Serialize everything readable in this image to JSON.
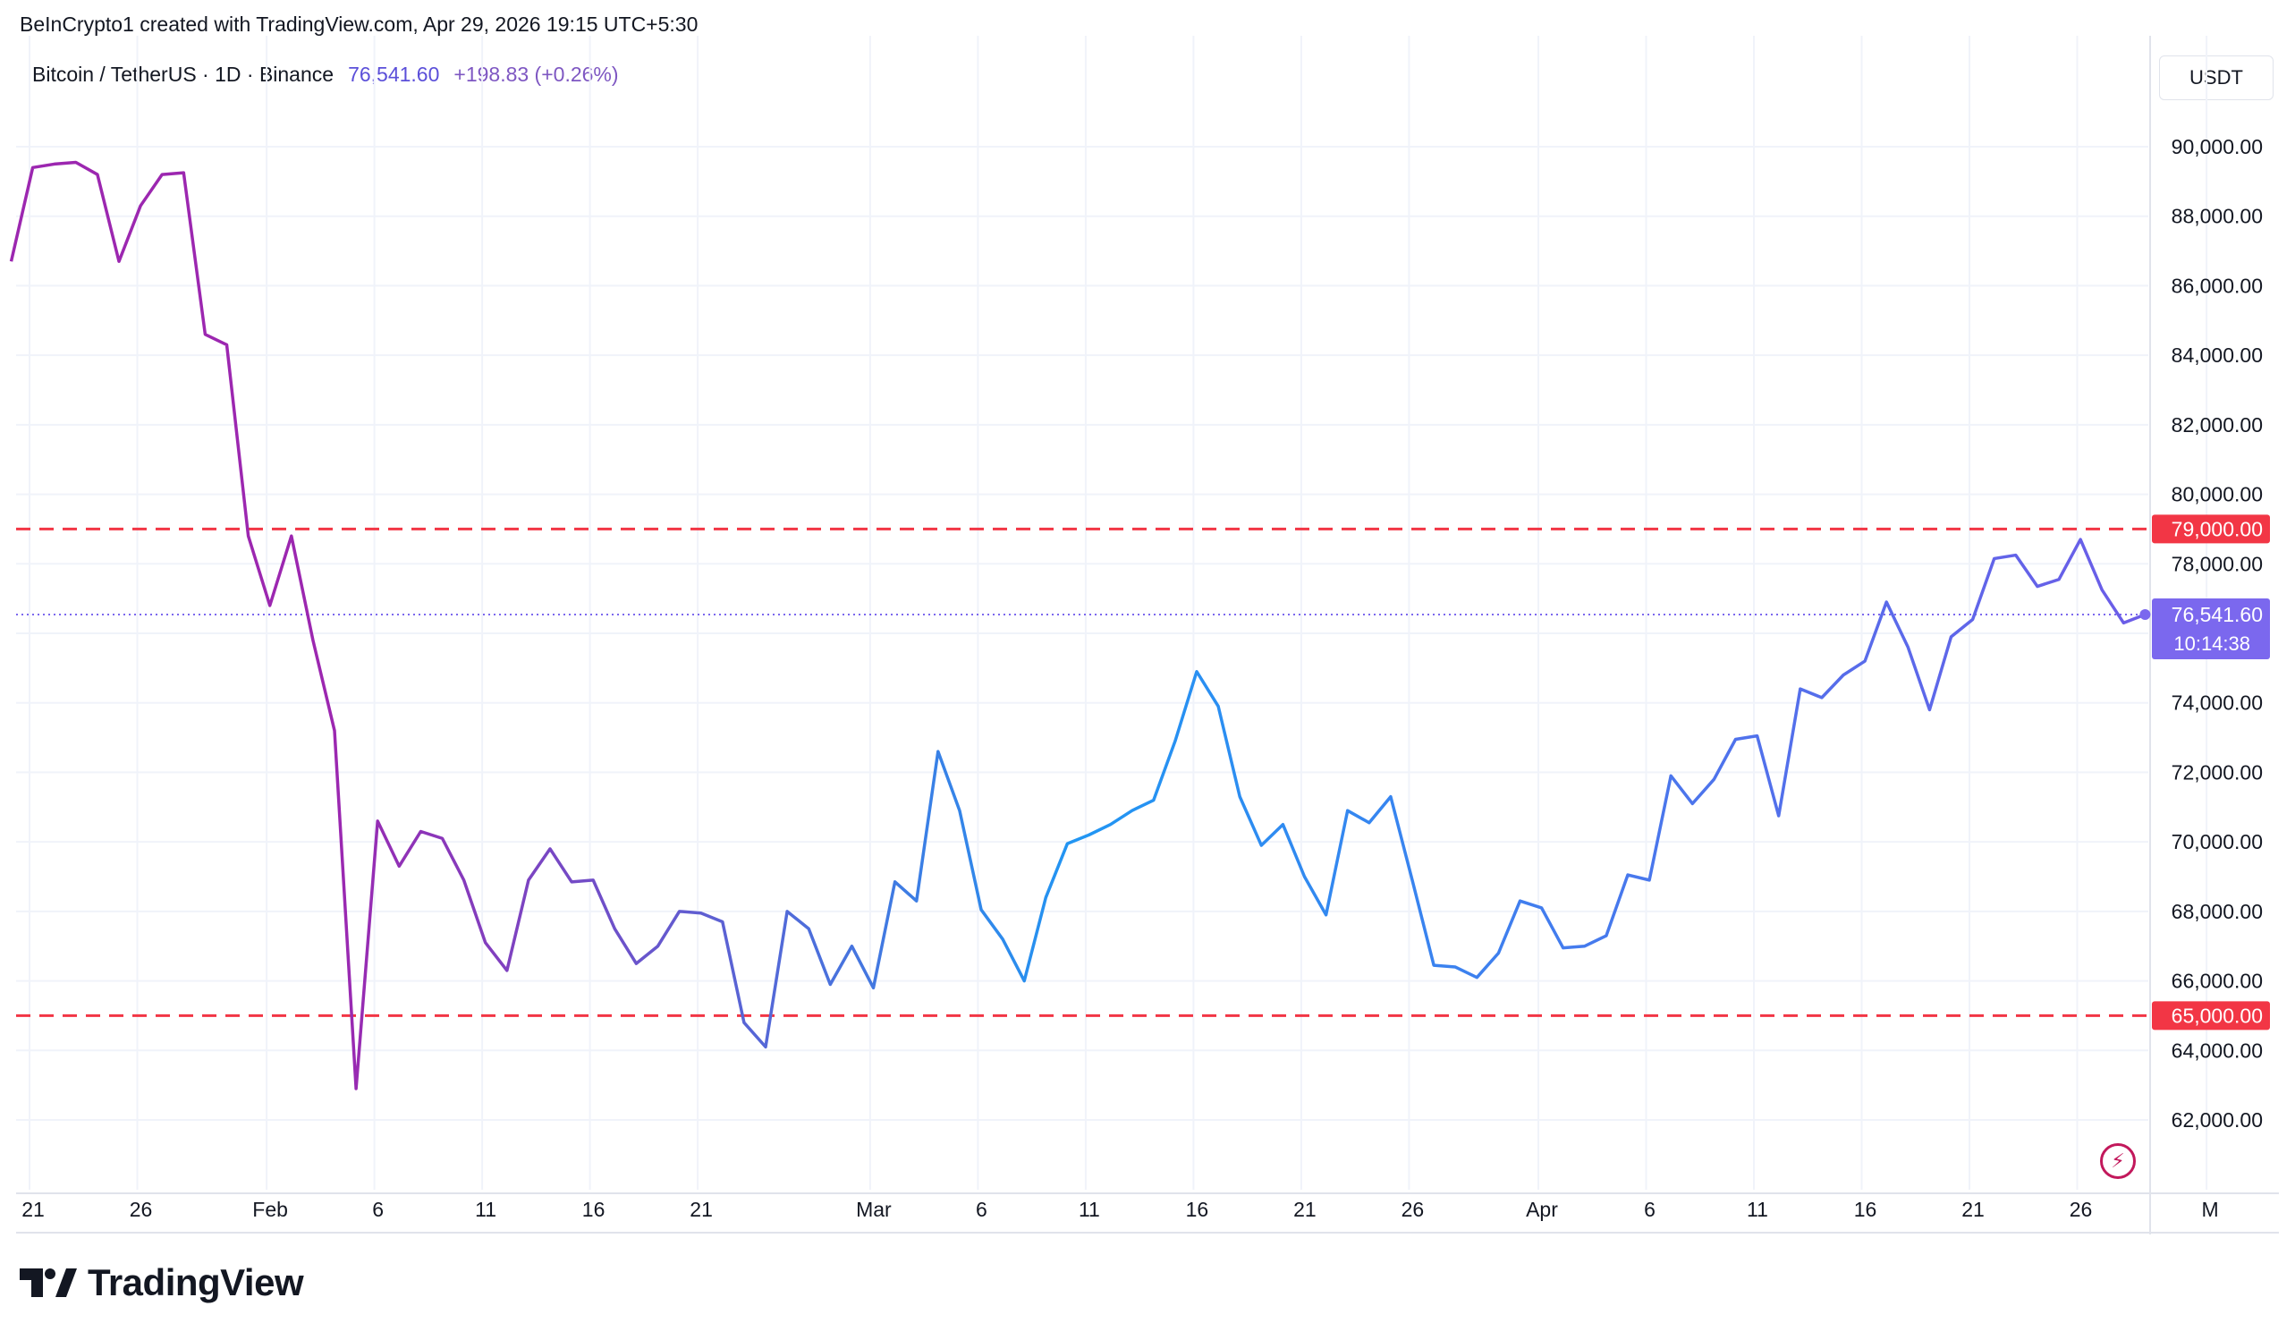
{
  "header": {
    "author_line": "BeInCrypto1 created with TradingView.com, Apr 29, 2026 19:15 UTC+5:30"
  },
  "legend": {
    "symbol": "Bitcoin / TetherUS · 1D · Binance",
    "price": "76,541.60",
    "change": "+198.83 (+0.26%)"
  },
  "currency": "USDT",
  "footer": {
    "brand": "TradingView"
  },
  "icons": {
    "logo": "tradingview-logo-icon",
    "bolt": "lightning-bolt-icon"
  },
  "colors": {
    "line_start": "#9c27b0",
    "line_end": "#2196f3",
    "line_recent": "#6c5ce7",
    "level_line": "#f23645",
    "current_price": "#7b68ee",
    "grid": "#f0f3fa"
  },
  "chart_data": {
    "type": "line",
    "y_range": [
      60000,
      92000
    ],
    "y_ticks": [
      "90,000.00",
      "88,000.00",
      "86,000.00",
      "84,000.00",
      "82,000.00",
      "80,000.00",
      "78,000.00",
      "74,000.00",
      "72,000.00",
      "70,000.00",
      "68,000.00",
      "66,000.00",
      "64,000.00",
      "62,000.00"
    ],
    "y_tick_values": [
      90000,
      88000,
      86000,
      84000,
      82000,
      80000,
      78000,
      74000,
      72000,
      70000,
      68000,
      66000,
      64000,
      62000
    ],
    "x_ticks": [
      "21",
      "26",
      "Feb",
      "6",
      "11",
      "16",
      "21",
      "Mar",
      "6",
      "11",
      "16",
      "21",
      "26",
      "Apr",
      "6",
      "11",
      "16",
      "21",
      "26",
      "M"
    ],
    "x_tick_days": [
      0,
      5,
      11,
      16,
      21,
      26,
      31,
      39,
      44,
      49,
      54,
      59,
      64,
      70,
      75,
      80,
      85,
      90,
      95,
      101
    ],
    "horizontal_levels": [
      {
        "value": 79000,
        "label": "79,000.00"
      },
      {
        "value": 65000,
        "label": 65000,
        "label_text": "65,000.00"
      }
    ],
    "current_price": {
      "value": 76541.6,
      "label": "76,541.60",
      "countdown": "10:14:38"
    },
    "series": [
      {
        "values": [
          86700,
          89400,
          89500,
          89550,
          89200,
          86700,
          88300,
          89200,
          89250,
          84600,
          84300,
          78800,
          76800,
          78800,
          75800,
          73200,
          62900,
          70600,
          69300,
          70300,
          70100,
          68900,
          67100,
          66300,
          68900,
          69800,
          68850,
          68900,
          67500,
          66500,
          67000,
          68000,
          67950,
          67700,
          64800,
          64100,
          68000,
          67500,
          65900,
          67000,
          65800,
          68850,
          68300,
          72600,
          70900,
          68050,
          67200,
          66000,
          68400,
          69950,
          70200,
          70500,
          70900,
          71200,
          72900,
          74900,
          73900,
          71300,
          69900,
          70500,
          69000,
          67900,
          70900,
          70550,
          71300,
          68900,
          66450,
          66400,
          66100,
          66800,
          68300,
          68100,
          66950,
          67000,
          67300,
          69050,
          68900,
          71900,
          71100,
          71800,
          72950,
          73050,
          70750,
          74400,
          74150,
          74800,
          75200,
          76900,
          75600,
          73800,
          75900,
          76400,
          78150,
          78250,
          77350,
          77550,
          78700,
          77250,
          76300,
          76541.6
        ]
      }
    ]
  }
}
